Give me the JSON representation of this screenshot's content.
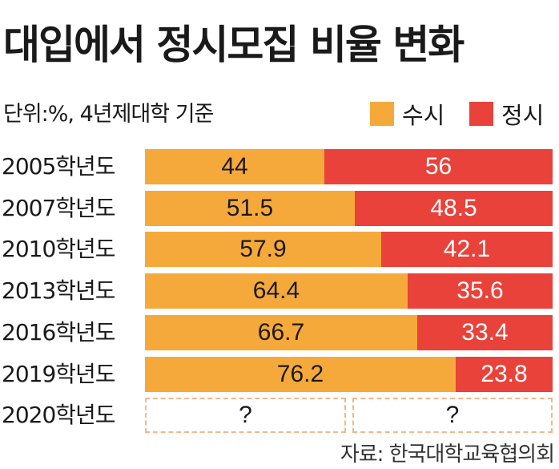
{
  "title": "대입에서 정시모집 비율 변화",
  "unit_note": "단위:%, 4년제대학 기준",
  "legend": [
    {
      "label": "수시",
      "color": "#f6a93b"
    },
    {
      "label": "정시",
      "color": "#e8423a"
    }
  ],
  "source": "자료: 한국대학교육협의회",
  "chart_data": {
    "type": "bar",
    "orientation": "horizontal",
    "stacked": true,
    "percent_stacked": true,
    "categories": [
      "2005학년도",
      "2007학년도",
      "2010학년도",
      "2013학년도",
      "2016학년도",
      "2019학년도",
      "2020학년도"
    ],
    "series": [
      {
        "name": "수시",
        "color": "#f6a93b",
        "values": [
          44,
          51.5,
          57.9,
          64.4,
          66.7,
          76.2,
          null
        ],
        "labels": [
          "44",
          "51.5",
          "57.9",
          "64.4",
          "66.7",
          "76.2",
          "?"
        ]
      },
      {
        "name": "정시",
        "color": "#e8423a",
        "values": [
          56,
          48.5,
          42.1,
          35.6,
          33.4,
          23.8,
          null
        ],
        "labels": [
          "56",
          "48.5",
          "42.1",
          "35.6",
          "33.4",
          "23.8",
          "?"
        ]
      }
    ],
    "unknown_split_display": 0.5,
    "xlim": [
      0,
      100
    ]
  }
}
